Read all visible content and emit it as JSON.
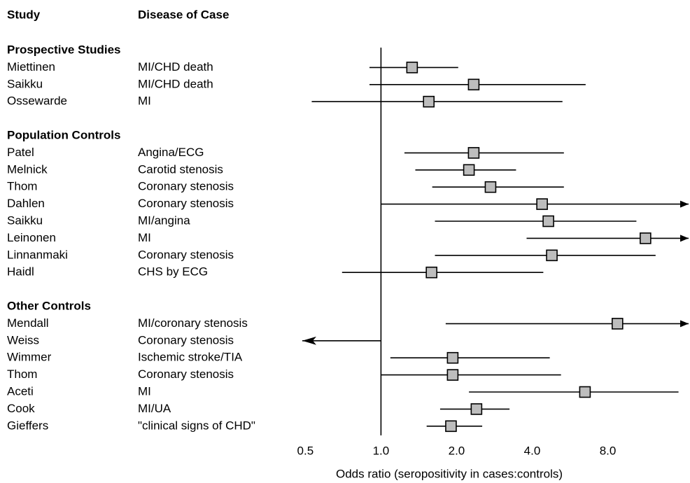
{
  "chart_data": {
    "type": "forest",
    "headers": [
      "Study",
      "Disease of Case"
    ],
    "xlabel": "Odds ratio (seropositivity in cases:controls)",
    "log_scale": true,
    "xlim": [
      0.48,
      17
    ],
    "xticks": [
      0.5,
      {
        "value": 1,
        "label": "1.0"
      },
      {
        "value": 2,
        "label": "2.0"
      },
      {
        "value": 4,
        "label": "4.0"
      },
      {
        "value": 8,
        "label": "8.0"
      }
    ],
    "reference_line": 1,
    "square_color": "#bdbdbd",
    "groups": [
      {
        "name": "Prospective Studies",
        "studies": [
          {
            "study": "Miettinen",
            "disease": "MI/CHD death",
            "estimate": 1.33,
            "lower": 0.9,
            "upper": 2.03
          },
          {
            "study": "Saikku",
            "disease": "MI/CHD death",
            "estimate": 2.34,
            "lower": 0.9,
            "upper": 6.53
          },
          {
            "study": "Ossewarde",
            "disease": "MI",
            "estimate": 1.55,
            "lower": 0.53,
            "upper": 5.28
          }
        ]
      },
      {
        "name": "Population Controls",
        "studies": [
          {
            "study": "Patel",
            "disease": "Angina/ECG",
            "estimate": 2.34,
            "lower": 1.24,
            "upper": 5.35
          },
          {
            "study": "Melnick",
            "disease": "Carotid stenosis",
            "estimate": 2.24,
            "lower": 1.37,
            "upper": 3.45
          },
          {
            "study": "Thom",
            "disease": "Coronary stenosis",
            "estimate": 2.73,
            "lower": 1.6,
            "upper": 5.35
          },
          {
            "study": "Dahlen",
            "disease": "Coronary  stenosis",
            "estimate": 4.38,
            "lower": 1.0,
            "upper": null
          },
          {
            "study": "Saikku",
            "disease": "MI/angina",
            "estimate": 4.64,
            "lower": 1.64,
            "upper": 10.4
          },
          {
            "study": "Leinonen",
            "disease": "MI",
            "estimate": 11.3,
            "lower": 3.8,
            "upper": null
          },
          {
            "study": "Linnanmaki",
            "disease": "Coronary stenosis",
            "estimate": 4.79,
            "lower": 1.64,
            "upper": 12.4
          },
          {
            "study": "Haidl",
            "disease": "CHS by ECG",
            "estimate": 1.59,
            "lower": 0.7,
            "upper": 4.43
          }
        ]
      },
      {
        "name": "Other Controls",
        "studies": [
          {
            "study": "Mendall",
            "disease": "MI/coronary stenosis",
            "estimate": 8.74,
            "lower": 1.81,
            "upper": null
          },
          {
            "study": "Weiss",
            "disease": "Coronary stenosis",
            "estimate": null,
            "lower": null,
            "upper": 1.0
          },
          {
            "study": "Wimmer",
            "disease": "Ischemic stroke/TIA",
            "estimate": 1.93,
            "lower": 1.09,
            "upper": 4.7
          },
          {
            "study": "Thom",
            "disease": "Coronary stenosis",
            "estimate": 1.93,
            "lower": 1.0,
            "upper": 5.21
          },
          {
            "study": "Aceti",
            "disease": "MI",
            "estimate": 6.49,
            "lower": 2.24,
            "upper": 15.3
          },
          {
            "study": "Cook",
            "disease": "MI/UA",
            "estimate": 2.4,
            "lower": 1.72,
            "upper": 3.25
          },
          {
            "study": "Gieffers",
            "disease": "\"clinical signs of CHD\"",
            "estimate": 1.9,
            "lower": 1.52,
            "upper": 2.53
          }
        ]
      }
    ]
  }
}
